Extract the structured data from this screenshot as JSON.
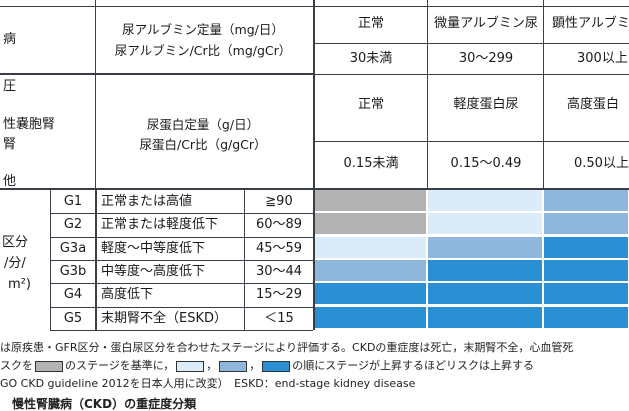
{
  "colors": {
    "green": "#b3b3b3",
    "yellow": "#dcebf8",
    "orange": "#8fb7dc",
    "red": "#2b8fd4",
    "line_dark": "#3a3f47",
    "line_blue": "#5da3d6"
  },
  "header": {
    "left_row1": "病",
    "left_row2": [
      "圧",
      "性嚢胞腎",
      "腎",
      "他"
    ],
    "gfr_label": [
      "区分",
      "/分/",
      "m²)"
    ],
    "alb_label": [
      "尿アルブミン定量（mg/日）",
      "尿アルブミン/Cr比（mg/gCr）"
    ],
    "prot_label": [
      "尿蛋白定量（g/日）",
      "尿蛋白/Cr比（g/gCr）"
    ],
    "alb_cats": [
      "正常",
      "微量アルブミン尿",
      "顕性アルブミ"
    ],
    "alb_vals": [
      "30未満",
      "30～299",
      "300以上"
    ],
    "prot_cats": [
      "正常",
      "軽度蛋白尿",
      "高度蛋白"
    ],
    "prot_vals": [
      "0.15未満",
      "0.15～0.49",
      "0.50以上"
    ]
  },
  "rows": [
    {
      "grade": "G1",
      "desc": "正常または高値",
      "gfr": "≧90",
      "risk": [
        "green",
        "yellow",
        "orange"
      ]
    },
    {
      "grade": "G2",
      "desc": "正常または軽度低下",
      "gfr": "60～89",
      "risk": [
        "green",
        "yellow",
        "orange"
      ]
    },
    {
      "grade": "G3a",
      "desc": "軽度～中等度低下",
      "gfr": "45～59",
      "risk": [
        "yellow",
        "orange",
        "red"
      ]
    },
    {
      "grade": "G3b",
      "desc": "中等度～高度低下",
      "gfr": "30～44",
      "risk": [
        "orange",
        "red",
        "red"
      ]
    },
    {
      "grade": "G4",
      "desc": "高度低下",
      "gfr": "15～29",
      "risk": [
        "red",
        "red",
        "red"
      ]
    },
    {
      "grade": "G5",
      "desc": "末期腎不全（ESKD）",
      "gfr": "＜15",
      "risk": [
        "red",
        "red",
        "red"
      ]
    }
  ],
  "notes": {
    "line1": "は原疾患・GFR区分・蛋白尿区分を合わせたステージにより評価する。CKDの重症度は死亡，末期腎不全，心血管死",
    "line2_a": "スクを",
    "line2_b": "のステージを基準に，",
    "line2_c": "，",
    "line2_d": "，",
    "line2_e": "の順にステージが上昇するほどリスクは上昇する",
    "line3": "GO CKD guideline 2012を日本人用に改変）　ESKD：end-stage kidney disease",
    "line4": "　慢性腎臓病（CKD）の重症度分類"
  }
}
